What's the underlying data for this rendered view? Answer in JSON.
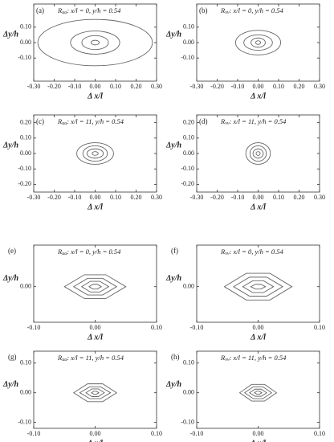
{
  "chart_data": [
    {
      "type": "contour",
      "panel": "(a)",
      "symbol": "R",
      "sub": "uu",
      "title": ": x/l = 0, y/h = 0.54",
      "xlabel": "Δ x/l",
      "ylabel": "Δy/h",
      "contour_shape": "ellipse",
      "color": "#666",
      "xlim": [
        -0.3,
        0.3
      ],
      "ylim": [
        -0.25,
        0.25
      ],
      "xticks": [
        {
          "value": -0.3,
          "label": "-0.30"
        },
        {
          "value": -0.2,
          "label": "-0.20"
        },
        {
          "value": -0.1,
          "label": "-0.10"
        },
        {
          "value": 0,
          "label": "0.00"
        },
        {
          "value": 0.1,
          "label": "0.10"
        },
        {
          "value": 0.2,
          "label": "0.20"
        },
        {
          "value": 0.3,
          "label": "0.30"
        }
      ],
      "yticks": [
        {
          "value": -0.1,
          "label": "-0.10"
        },
        {
          "value": 0,
          "label": "0.00"
        },
        {
          "value": 0.1,
          "label": "0.10"
        }
      ],
      "contours": [
        {
          "rx": 0.28,
          "ry": 0.15
        },
        {
          "rx": 0.12,
          "ry": 0.075
        },
        {
          "rx": 0.065,
          "ry": 0.045
        },
        {
          "rx": 0.02,
          "ry": 0.015
        }
      ]
    },
    {
      "type": "contour",
      "panel": "(b)",
      "symbol": "R",
      "sub": "vv",
      "title": ": x/l = 0, y/h = 0.54",
      "xlabel": "Δ x/l",
      "ylabel": "Δy/h",
      "contour_shape": "ellipse",
      "color": "#666",
      "xlim": [
        -0.3,
        0.3
      ],
      "ylim": [
        -0.25,
        0.25
      ],
      "xticks": [
        {
          "value": -0.3,
          "label": "-0.30"
        },
        {
          "value": -0.2,
          "label": "-0.20"
        },
        {
          "value": -0.1,
          "label": "-0.10"
        },
        {
          "value": 0,
          "label": "0.00"
        },
        {
          "value": 0.1,
          "label": "0.10"
        },
        {
          "value": 0.2,
          "label": "0.20"
        },
        {
          "value": 0.3,
          "label": "0.30"
        }
      ],
      "yticks": [
        {
          "value": -0.1,
          "label": "-0.10"
        },
        {
          "value": 0,
          "label": "0.00"
        },
        {
          "value": 0.1,
          "label": "0.10"
        }
      ],
      "contours": [
        {
          "rx": 0.11,
          "ry": 0.08
        },
        {
          "rx": 0.07,
          "ry": 0.05
        },
        {
          "rx": 0.035,
          "ry": 0.03
        },
        {
          "rx": 0.012,
          "ry": 0.012
        }
      ]
    },
    {
      "type": "contour",
      "panel": "(c)",
      "symbol": "R",
      "sub": "uu",
      "title": ": x/l = 11, y/h = 0.54",
      "xlabel": "Δ x/l",
      "ylabel": "Δy/h",
      "contour_shape": "ellipse",
      "color": "#666",
      "xlim": [
        -0.3,
        0.3
      ],
      "ylim": [
        -0.25,
        0.25
      ],
      "xticks": [
        {
          "value": -0.3,
          "label": "-0.30"
        },
        {
          "value": -0.2,
          "label": "-0.20"
        },
        {
          "value": -0.1,
          "label": "-0.10"
        },
        {
          "value": 0,
          "label": "0.00"
        },
        {
          "value": 0.1,
          "label": "0.10"
        },
        {
          "value": 0.2,
          "label": "0.20"
        },
        {
          "value": 0.3,
          "label": "0.30"
        }
      ],
      "yticks": [
        {
          "value": -0.2,
          "label": "-0.20"
        },
        {
          "value": -0.1,
          "label": "-0.10"
        },
        {
          "value": 0,
          "label": "0.00"
        },
        {
          "value": 0.1,
          "label": "0.10"
        },
        {
          "value": 0.2,
          "label": "0.20"
        }
      ],
      "contours": [
        {
          "rx": 0.09,
          "ry": 0.07
        },
        {
          "rx": 0.06,
          "ry": 0.05
        },
        {
          "rx": 0.04,
          "ry": 0.03
        },
        {
          "rx": 0.015,
          "ry": 0.012
        }
      ]
    },
    {
      "type": "contour",
      "panel": "(d)",
      "symbol": "R",
      "sub": "vv",
      "title": ": x/l = 11, y/h = 0.54",
      "xlabel": "Δ x/l",
      "ylabel": "Δy/h",
      "contour_shape": "ellipse",
      "color": "#666",
      "xlim": [
        -0.3,
        0.3
      ],
      "ylim": [
        -0.25,
        0.25
      ],
      "xticks": [
        {
          "value": -0.3,
          "label": "-0.30"
        },
        {
          "value": -0.2,
          "label": "-0.20"
        },
        {
          "value": -0.1,
          "label": "-0.10"
        },
        {
          "value": 0,
          "label": "0.00"
        },
        {
          "value": 0.1,
          "label": "0.10"
        },
        {
          "value": 0.2,
          "label": "0.20"
        },
        {
          "value": 0.3,
          "label": "0.30"
        }
      ],
      "yticks": [
        {
          "value": -0.2,
          "label": "-0.20"
        },
        {
          "value": -0.1,
          "label": "-0.10"
        },
        {
          "value": 0,
          "label": "0.00"
        },
        {
          "value": 0.1,
          "label": "0.10"
        },
        {
          "value": 0.2,
          "label": "0.20"
        }
      ],
      "contours": [
        {
          "rx": 0.06,
          "ry": 0.07
        },
        {
          "rx": 0.04,
          "ry": 0.05
        },
        {
          "rx": 0.025,
          "ry": 0.03
        },
        {
          "rx": 0.01,
          "ry": 0.012
        }
      ]
    },
    {
      "type": "contour",
      "panel": "(e)",
      "symbol": "R",
      "sub": "uu",
      "title": ": x/l = 0, y/h = 0.54",
      "xlabel": "Δ x/l",
      "ylabel": "Δy/h",
      "contour_shape": "diamond",
      "color": "#666",
      "xlim": [
        -0.1,
        0.1
      ],
      "ylim": [
        -0.12,
        0.14
      ],
      "xticks": [
        {
          "value": -0.1,
          "label": "-0.10"
        },
        {
          "value": 0,
          "label": "0.00"
        },
        {
          "value": 0.1,
          "label": "0.10"
        }
      ],
      "yticks": [
        {
          "value": 0,
          "label": "0.00"
        }
      ],
      "contours": [
        {
          "rx": 0.05,
          "ry": 0.04
        },
        {
          "rx": 0.035,
          "ry": 0.028
        },
        {
          "rx": 0.022,
          "ry": 0.018
        },
        {
          "rx": 0.01,
          "ry": 0.008
        }
      ]
    },
    {
      "type": "contour",
      "panel": "(f)",
      "symbol": "R",
      "sub": "vv",
      "title": ": x/l = 0, y/h = 0.54",
      "xlabel": "Δ x/l",
      "ylabel": "Δy/h",
      "contour_shape": "diamond",
      "color": "#666",
      "xlim": [
        -0.1,
        0.1
      ],
      "ylim": [
        -0.12,
        0.14
      ],
      "xticks": [
        {
          "value": -0.1,
          "label": "-0.10"
        },
        {
          "value": 0,
          "label": "0.00"
        },
        {
          "value": 0.1,
          "label": "0.10"
        }
      ],
      "yticks": [
        {
          "value": 0,
          "label": "0.00"
        }
      ],
      "contours": [
        {
          "rx": 0.055,
          "ry": 0.045
        },
        {
          "rx": 0.04,
          "ry": 0.032
        },
        {
          "rx": 0.025,
          "ry": 0.02
        },
        {
          "rx": 0.012,
          "ry": 0.008
        }
      ]
    },
    {
      "type": "contour",
      "panel": "(g)",
      "symbol": "R",
      "sub": "uu",
      "title": ": x/l = 11, y/h = 0.54",
      "xlabel": "Δ x/l",
      "ylabel": "Δy/h",
      "contour_shape": "diamond",
      "color": "#666",
      "xlim": [
        -0.1,
        0.1
      ],
      "ylim": [
        -0.12,
        0.14
      ],
      "xticks": [
        {
          "value": -0.1,
          "label": "-0.10"
        },
        {
          "value": 0,
          "label": "0.00"
        },
        {
          "value": 0.1,
          "label": "0.10"
        }
      ],
      "yticks": [
        {
          "value": -0.1,
          "label": "-0.10"
        },
        {
          "value": 0,
          "label": "0.00"
        },
        {
          "value": 0.1,
          "label": "0.10"
        }
      ],
      "contours": [
        {
          "rx": 0.035,
          "ry": 0.03
        },
        {
          "rx": 0.025,
          "ry": 0.02
        },
        {
          "rx": 0.015,
          "ry": 0.013
        },
        {
          "rx": 0.006,
          "ry": 0.005
        }
      ]
    },
    {
      "type": "contour",
      "panel": "(h)",
      "symbol": "R",
      "sub": "vv",
      "title": ": x/l = 11, y/h = 0.54",
      "xlabel": "Δ x/l",
      "ylabel": "Δy/h",
      "contour_shape": "diamond",
      "color": "#666",
      "xlim": [
        -0.1,
        0.1
      ],
      "ylim": [
        -0.12,
        0.14
      ],
      "xticks": [
        {
          "value": -0.1,
          "label": "-0.10"
        },
        {
          "value": 0,
          "label": "0.00"
        },
        {
          "value": 0.1,
          "label": "0.10"
        }
      ],
      "yticks": [
        {
          "value": -0.1,
          "label": "-0.10"
        },
        {
          "value": 0,
          "label": "0.00"
        },
        {
          "value": 0.1,
          "label": "0.10"
        }
      ],
      "contours": [
        {
          "rx": 0.03,
          "ry": 0.028
        },
        {
          "rx": 0.022,
          "ry": 0.02
        },
        {
          "rx": 0.014,
          "ry": 0.012
        },
        {
          "rx": 0.006,
          "ry": 0.005
        }
      ]
    }
  ]
}
